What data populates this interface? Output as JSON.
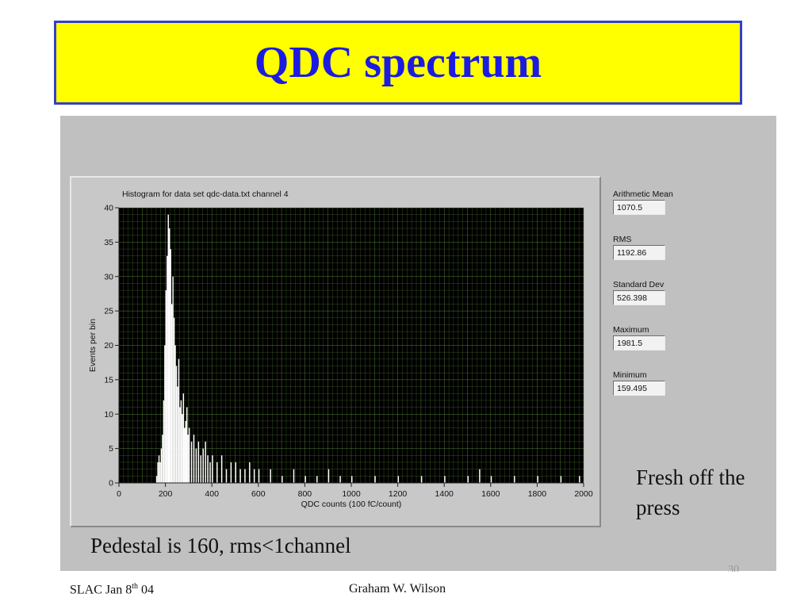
{
  "slide": {
    "title": "QDC spectrum",
    "note": "Fresh off the press",
    "caption": "Pedestal is 160, rms<1channel",
    "footer_left_prefix": "SLAC Jan 8",
    "footer_left_sup": "th",
    "footer_left_suffix": " 04",
    "footer_center": "Graham W. Wilson",
    "slide_number": "30"
  },
  "stats": [
    {
      "label": "Arithmetic Mean",
      "value": "1070.5"
    },
    {
      "label": "RMS",
      "value": "1192.86"
    },
    {
      "label": "Standard Dev",
      "value": "526.398"
    },
    {
      "label": "Maximum",
      "value": "1981.5"
    },
    {
      "label": "Minimum",
      "value": "159.495"
    }
  ],
  "colors": {
    "title_bg": "#ffff00",
    "title_text": "#1c1ce0",
    "plot_bg": "#000000",
    "grid": "#5f8c3a",
    "bars": "#ffffff"
  },
  "chart_data": {
    "type": "bar",
    "title": "Histogram for data set qdc-data.txt channel 4",
    "xlabel": "QDC counts (100 fC/count)",
    "ylabel": "Events per bin",
    "xlim": [
      0,
      2000
    ],
    "ylim": [
      0,
      40
    ],
    "x_ticks": [
      0,
      200,
      400,
      600,
      800,
      1000,
      1200,
      1400,
      1600,
      1800,
      2000
    ],
    "y_ticks": [
      0,
      5,
      10,
      15,
      20,
      25,
      30,
      35,
      40
    ],
    "grid": true,
    "series": [
      {
        "bin_width": 5,
        "x": [
          160,
          165,
          170,
          175,
          180,
          185,
          190,
          195,
          200,
          205,
          210,
          215,
          220,
          225,
          230,
          235,
          240,
          245,
          250,
          255,
          260,
          265,
          270,
          275,
          280,
          285,
          290,
          295,
          300,
          310,
          320,
          330,
          340,
          350,
          360,
          370,
          380,
          390,
          400,
          420,
          440,
          460,
          480,
          500,
          520,
          540,
          560,
          580,
          600,
          650,
          700,
          750,
          800,
          850,
          900,
          950,
          1000,
          1100,
          1200,
          1300,
          1400,
          1500,
          1550,
          1600,
          1700,
          1800,
          1900,
          1980
        ],
        "values": [
          1,
          3,
          4,
          3,
          5,
          7,
          12,
          20,
          28,
          33,
          39,
          37,
          34,
          26,
          30,
          24,
          20,
          17,
          14,
          18,
          11,
          12,
          10,
          13,
          8,
          9,
          11,
          7,
          8,
          6,
          7,
          5,
          6,
          4,
          5,
          6,
          4,
          3,
          4,
          3,
          4,
          2,
          3,
          3,
          2,
          2,
          3,
          2,
          2,
          2,
          1,
          2,
          1,
          1,
          2,
          1,
          1,
          1,
          1,
          1,
          1,
          1,
          2,
          1,
          1,
          1,
          1,
          1
        ]
      }
    ]
  }
}
